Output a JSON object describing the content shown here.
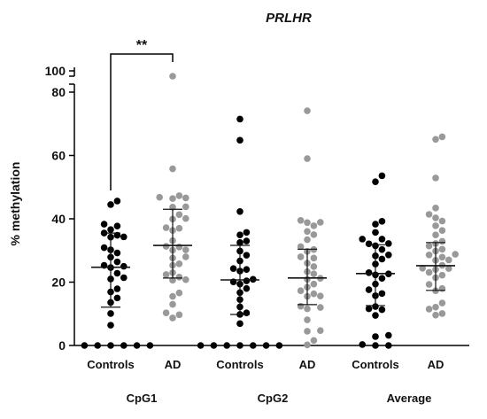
{
  "chart_data": {
    "type": "scatter",
    "title": "PRLHR",
    "ylabel": "% methylation",
    "xlabel": "",
    "y_axis": {
      "broken": true,
      "lower_range": [
        0,
        88
      ],
      "upper_range": [
        98,
        102
      ],
      "ticks": [
        {
          "value": 0,
          "label": "0"
        },
        {
          "value": 20,
          "label": "20"
        },
        {
          "value": 40,
          "label": "40"
        },
        {
          "value": 60,
          "label": "60"
        },
        {
          "value": 80,
          "label": "80"
        },
        {
          "value": 100,
          "label": "100"
        }
      ]
    },
    "grid": false,
    "legend": "none",
    "groups": [
      {
        "label": "CpG1",
        "series_labels": [
          "Controls",
          "AD"
        ]
      },
      {
        "label": "CpG2",
        "series_labels": [
          "Controls",
          "AD"
        ]
      },
      {
        "label": "Average",
        "series_labels": [
          "Controls",
          "AD"
        ]
      }
    ],
    "series": [
      {
        "group": "CpG1",
        "category": "Controls",
        "color": "#000000",
        "mean": 24.7,
        "sd_low": 12.1,
        "sd_high": 35.5,
        "values": [
          45.6,
          44.5,
          38.3,
          37.7,
          36.6,
          35.5,
          34.8,
          34.3,
          34.2,
          30.9,
          30.2,
          29.2,
          27.9,
          26.4,
          25.3,
          25.0,
          24.6,
          22.8,
          21.4,
          21.0,
          17.9,
          16.9,
          15.0,
          13.6,
          10.1,
          6.4,
          0,
          0,
          0,
          0,
          0,
          0
        ]
      },
      {
        "group": "CpG1",
        "category": "AD",
        "color": "#999999",
        "mean": 31.6,
        "sd_low": 21.3,
        "sd_high": 43.0,
        "values": [
          98.5,
          55.8,
          47.3,
          46.8,
          46.6,
          46.4,
          43.8,
          43.7,
          41.3,
          40.1,
          39.9,
          37.2,
          37.0,
          36.3,
          33.1,
          31.3,
          31.1,
          30.2,
          30.1,
          28.0,
          27.6,
          25.8,
          25.3,
          23.0,
          22.4,
          21.6,
          20.8,
          20.6,
          16.6,
          15.5,
          13.0,
          10.3,
          9.7,
          8.7
        ]
      },
      {
        "group": "CpG2",
        "category": "Controls",
        "color": "#000000",
        "mean": 20.7,
        "sd_low": 9.8,
        "sd_high": 31.6,
        "values": [
          71.5,
          64.8,
          42.3,
          35.7,
          34.9,
          33.0,
          32.5,
          29.8,
          28.5,
          26.7,
          24.3,
          24.0,
          23.5,
          20.9,
          20.4,
          20.1,
          19.4,
          18.0,
          16.7,
          14.5,
          12.2,
          10.3,
          9.8,
          6.9,
          0,
          0,
          0,
          0,
          0,
          0,
          0
        ]
      },
      {
        "group": "CpG2",
        "category": "AD",
        "color": "#999999",
        "mean": 21.3,
        "sd_low": 12.9,
        "sd_high": 30.4,
        "values": [
          74.1,
          59.0,
          39.5,
          38.9,
          38.8,
          37.8,
          36.0,
          35.0,
          33.4,
          31.2,
          30.3,
          29.7,
          28.0,
          27.6,
          26.0,
          24.9,
          23.3,
          22.6,
          21.2,
          20.9,
          19.4,
          18.4,
          17.3,
          16.3,
          15.6,
          15.5,
          12.4,
          12.0,
          11.6,
          8.1,
          4.7,
          4.5,
          1.6,
          0.2
        ]
      },
      {
        "group": "Average",
        "category": "Controls",
        "color": "#000000",
        "mean": 22.7,
        "sd_low": 12.6,
        "sd_high": 31.8,
        "values": [
          53.6,
          51.7,
          39.2,
          38.3,
          35.7,
          33.6,
          33.6,
          32.2,
          32.1,
          31.5,
          30.3,
          28.6,
          28.3,
          27.3,
          25.7,
          23.0,
          22.6,
          22.3,
          21.2,
          19.4,
          17.6,
          16.4,
          15.7,
          12.3,
          11.6,
          11.3,
          9.5,
          3.2,
          2.8,
          0.3,
          0,
          0
        ]
      },
      {
        "group": "Average",
        "category": "AD",
        "color": "#999999",
        "mean": 25.2,
        "sd_low": 17.4,
        "sd_high": 32.5,
        "values": [
          65.9,
          65.1,
          52.9,
          43.4,
          41.4,
          40.3,
          39.3,
          37.8,
          36.3,
          34.9,
          32.9,
          32.2,
          31.4,
          30.4,
          29.8,
          28.8,
          28.6,
          27.9,
          27.0,
          26.9,
          25.3,
          24.4,
          24.3,
          24.0,
          23.1,
          22.2,
          21.4,
          19.3,
          18.0,
          17.3,
          13.4,
          12.1,
          11.5,
          10.1,
          9.6
        ]
      }
    ],
    "annotations": [
      {
        "text": "**",
        "from_series": 0,
        "to_series": 1
      }
    ]
  }
}
